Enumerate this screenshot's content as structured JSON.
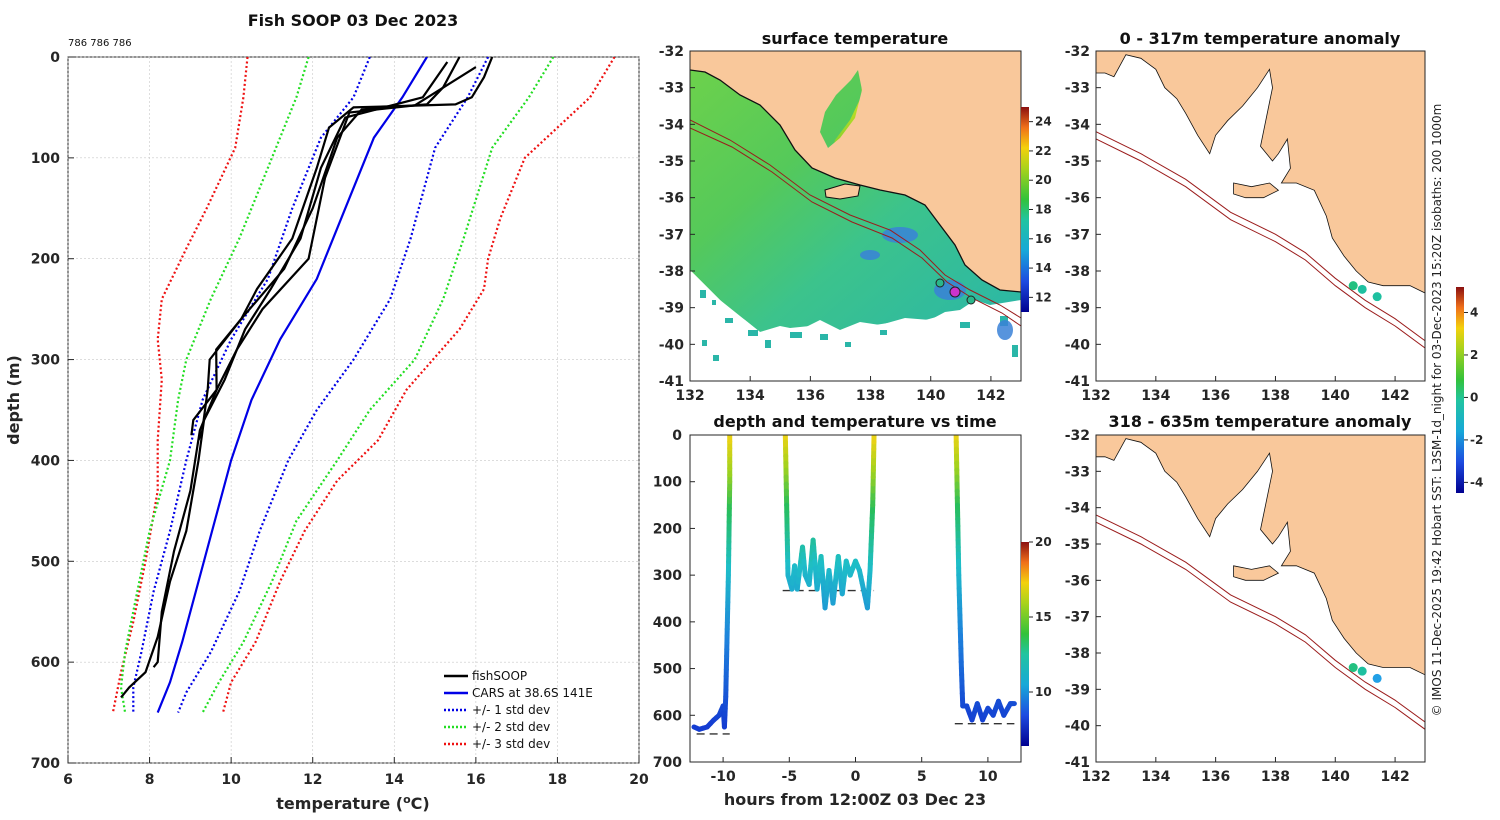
{
  "page_title": "Fish SOOP 03 Dec 2023",
  "top_note": "786 786 786",
  "side_note": "© IMOS 11-Dec-2025 19:42 Hobart SST: L3SM-1d_night for 03-Dec-2023 15:20Z isobaths: 200  1000m",
  "colors": {
    "land": "#f9c89b",
    "isobath": "#9b1c1c",
    "fish": "#000000",
    "cars": "#0000e6",
    "std1": "#0000e6",
    "std2": "#22dd22",
    "std3": "#ee1111"
  },
  "chart_data": [
    {
      "id": "profile",
      "type": "line",
      "title": "Fish SOOP 03 Dec 2023",
      "xlabel": "temperature (°C)",
      "ylabel": "depth (m)",
      "xlim": [
        6,
        20
      ],
      "ylim": [
        0,
        700
      ],
      "xticks": [
        6,
        8,
        10,
        12,
        14,
        16,
        18,
        20
      ],
      "yticks": [
        0,
        100,
        200,
        300,
        400,
        500,
        600,
        700
      ],
      "legend": [
        "fishSOOP",
        "CARS at 38.6S 141E",
        "+/- 1 std dev",
        "+/- 2 std dev",
        "+/- 3 std dev"
      ],
      "cars": [
        [
          14.8,
          0
        ],
        [
          14.2,
          40
        ],
        [
          13.5,
          80
        ],
        [
          12.8,
          150
        ],
        [
          12.1,
          220
        ],
        [
          11.2,
          280
        ],
        [
          10.5,
          340
        ],
        [
          10.0,
          400
        ],
        [
          9.6,
          460
        ],
        [
          9.2,
          520
        ],
        [
          8.8,
          580
        ],
        [
          8.5,
          620
        ],
        [
          8.2,
          650
        ]
      ],
      "std1_minus": [
        [
          13.4,
          0
        ],
        [
          13.0,
          40
        ],
        [
          12.2,
          80
        ],
        [
          11.5,
          150
        ],
        [
          10.9,
          220
        ],
        [
          10.0,
          280
        ],
        [
          9.3,
          340
        ],
        [
          8.9,
          400
        ],
        [
          8.5,
          470
        ],
        [
          8.1,
          530
        ],
        [
          7.8,
          590
        ],
        [
          7.6,
          625
        ],
        [
          7.6,
          650
        ]
      ],
      "std1_plus": [
        [
          16.3,
          0
        ],
        [
          15.8,
          40
        ],
        [
          15.0,
          90
        ],
        [
          14.4,
          180
        ],
        [
          13.9,
          240
        ],
        [
          13.0,
          300
        ],
        [
          12.1,
          350
        ],
        [
          11.4,
          400
        ],
        [
          10.7,
          470
        ],
        [
          10.2,
          530
        ],
        [
          9.5,
          590
        ],
        [
          8.9,
          630
        ],
        [
          8.7,
          650
        ]
      ],
      "std2_minus": [
        [
          11.9,
          0
        ],
        [
          11.6,
          40
        ],
        [
          11.0,
          100
        ],
        [
          10.2,
          180
        ],
        [
          9.5,
          240
        ],
        [
          8.9,
          300
        ],
        [
          8.7,
          340
        ],
        [
          8.5,
          400
        ],
        [
          8.0,
          470
        ],
        [
          7.7,
          530
        ],
        [
          7.4,
          590
        ],
        [
          7.3,
          625
        ],
        [
          7.4,
          650
        ]
      ],
      "std2_plus": [
        [
          17.9,
          0
        ],
        [
          17.3,
          40
        ],
        [
          16.4,
          90
        ],
        [
          15.7,
          180
        ],
        [
          15.2,
          240
        ],
        [
          14.5,
          300
        ],
        [
          13.4,
          350
        ],
        [
          12.6,
          400
        ],
        [
          11.6,
          460
        ],
        [
          11.0,
          520
        ],
        [
          10.3,
          580
        ],
        [
          9.7,
          620
        ],
        [
          9.3,
          650
        ]
      ],
      "std3_minus": [
        [
          10.4,
          0
        ],
        [
          10.3,
          40
        ],
        [
          10.1,
          90
        ],
        [
          9.4,
          150
        ],
        [
          8.9,
          190
        ],
        [
          8.3,
          240
        ],
        [
          8.2,
          280
        ],
        [
          8.3,
          320
        ],
        [
          8.2,
          380
        ],
        [
          8.2,
          430
        ],
        [
          7.9,
          500
        ],
        [
          7.6,
          560
        ],
        [
          7.3,
          610
        ],
        [
          7.1,
          650
        ]
      ],
      "std3_plus": [
        [
          19.4,
          0
        ],
        [
          18.8,
          40
        ],
        [
          17.2,
          100
        ],
        [
          16.6,
          160
        ],
        [
          16.3,
          200
        ],
        [
          16.2,
          230
        ],
        [
          15.6,
          270
        ],
        [
          14.3,
          330
        ],
        [
          13.6,
          380
        ],
        [
          12.6,
          420
        ],
        [
          11.8,
          470
        ],
        [
          11.2,
          520
        ],
        [
          10.6,
          580
        ],
        [
          10.0,
          620
        ],
        [
          9.8,
          650
        ]
      ],
      "fish_casts": [
        [
          [
            16.4,
            0
          ],
          [
            16.2,
            20
          ],
          [
            15.9,
            40
          ],
          [
            15.5,
            47
          ],
          [
            13.0,
            50
          ],
          [
            12.4,
            70
          ],
          [
            12.1,
            110
          ],
          [
            11.5,
            180
          ],
          [
            10.7,
            230
          ],
          [
            10.1,
            260
          ],
          [
            9.6,
            300
          ],
          [
            9.4,
            330
          ],
          [
            9.2,
            370
          ],
          [
            9.2,
            380
          ]
        ],
        [
          [
            15.6,
            0
          ],
          [
            15.2,
            30
          ],
          [
            14.8,
            47
          ],
          [
            13.2,
            52
          ],
          [
            12.6,
            80
          ],
          [
            12.0,
            150
          ],
          [
            11.3,
            210
          ],
          [
            10.3,
            260
          ],
          [
            9.7,
            290
          ],
          [
            9.5,
            330
          ],
          [
            9.2,
            360
          ],
          [
            9.0,
            375
          ]
        ],
        [
          [
            15.3,
            5
          ],
          [
            14.7,
            40
          ],
          [
            12.8,
            60
          ],
          [
            12.2,
            110
          ],
          [
            11.7,
            180
          ],
          [
            11.1,
            230
          ],
          [
            10.2,
            270
          ],
          [
            9.9,
            320
          ],
          [
            9.4,
            360
          ],
          [
            9.2,
            400
          ],
          [
            8.9,
            470
          ],
          [
            8.5,
            520
          ],
          [
            8.2,
            575
          ],
          [
            7.9,
            610
          ],
          [
            7.5,
            625
          ],
          [
            7.3,
            635
          ]
        ],
        [
          [
            16.0,
            10
          ],
          [
            14.5,
            48
          ],
          [
            12.9,
            55
          ],
          [
            12.3,
            120
          ],
          [
            11.9,
            200
          ],
          [
            10.9,
            250
          ],
          [
            10.0,
            290
          ],
          [
            9.7,
            330
          ],
          [
            9.3,
            370
          ],
          [
            9.0,
            430
          ],
          [
            8.6,
            490
          ],
          [
            8.3,
            550
          ],
          [
            8.2,
            600
          ],
          [
            8.1,
            605
          ]
        ]
      ]
    },
    {
      "id": "sst",
      "type": "heatmap",
      "title": "surface temperature",
      "xlim": [
        132,
        143
      ],
      "ylim": [
        -41,
        -32
      ],
      "xticks": [
        132,
        134,
        136,
        138,
        140,
        142
      ],
      "yticks": [
        -32,
        -33,
        -34,
        -35,
        -36,
        -37,
        -38,
        -39,
        -40,
        -41
      ],
      "colorbar_ticks": [
        12,
        14,
        16,
        18,
        20,
        22,
        24
      ]
    },
    {
      "id": "timeseries",
      "type": "scatter",
      "title": "depth and temperature vs time",
      "xlabel": "hours from 12:00Z 03 Dec 23",
      "xlim": [
        -12.5,
        12.5
      ],
      "ylim": [
        0,
        700
      ],
      "xticks": [
        -10,
        -5,
        0,
        5,
        10
      ],
      "yticks": [
        0,
        100,
        200,
        300,
        400,
        500,
        600,
        700
      ],
      "colorbar_ticks": [
        10,
        15,
        20
      ],
      "bottom_marks": [
        [
          -12,
          -9.5,
          640
        ],
        [
          -5.5,
          1.4,
          333
        ],
        [
          7.5,
          12.0,
          618
        ]
      ]
    },
    {
      "id": "anom_upper",
      "type": "scatter",
      "title": "0 - 317m temperature anomaly",
      "xlim": [
        132,
        143
      ],
      "ylim": [
        -41,
        -32
      ],
      "xticks": [
        132,
        134,
        136,
        138,
        140,
        142
      ],
      "yticks": [
        -32,
        -33,
        -34,
        -35,
        -36,
        -37,
        -38,
        -39,
        -40,
        -41
      ],
      "points": [
        [
          140.6,
          -38.4,
          -0.3
        ],
        [
          140.9,
          -38.5,
          -0.6
        ],
        [
          141.4,
          -38.7,
          -0.9
        ]
      ],
      "colorbar_ticks": [
        -4,
        -2,
        0,
        2,
        4
      ]
    },
    {
      "id": "anom_lower",
      "type": "scatter",
      "title": "318 - 635m temperature anomaly",
      "xlim": [
        132,
        143
      ],
      "ylim": [
        -41,
        -32
      ],
      "xticks": [
        132,
        134,
        136,
        138,
        140,
        142
      ],
      "yticks": [
        -32,
        -33,
        -34,
        -35,
        -36,
        -37,
        -38,
        -39,
        -40,
        -41
      ],
      "points": [
        [
          140.6,
          -38.4,
          -0.3
        ],
        [
          140.9,
          -38.5,
          -0.6
        ],
        [
          141.4,
          -38.7,
          -1.4
        ]
      ]
    }
  ]
}
